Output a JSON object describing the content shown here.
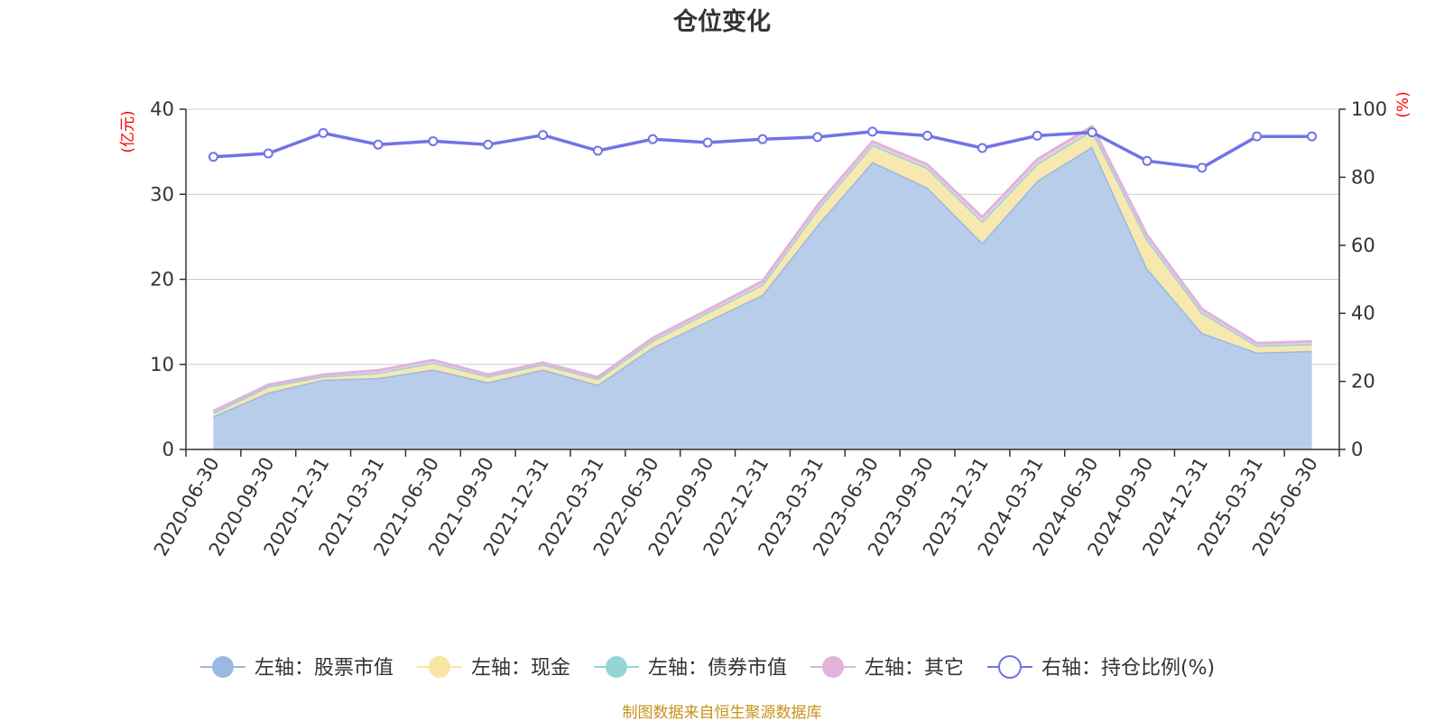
{
  "chart_data": {
    "type": "area",
    "title": "仓位变化",
    "left_axis_unit": "(亿元)",
    "right_axis_unit": "(%)",
    "left_ylim": [
      0,
      40
    ],
    "left_ticks": [
      "0",
      "10",
      "20",
      "30",
      "40"
    ],
    "right_ylim": [
      0,
      100
    ],
    "right_ticks": [
      "0",
      "20",
      "40",
      "60",
      "80",
      "100"
    ],
    "categories": [
      "2020-06-30",
      "2020-09-30",
      "2020-12-31",
      "2021-03-31",
      "2021-06-30",
      "2021-09-30",
      "2021-12-31",
      "2022-03-31",
      "2022-06-30",
      "2022-09-30",
      "2022-12-31",
      "2023-03-31",
      "2023-06-30",
      "2023-09-30",
      "2023-12-31",
      "2024-03-31",
      "2024-06-30",
      "2024-09-30",
      "2024-12-31",
      "2025-03-31",
      "2025-06-30"
    ],
    "stacked_series": [
      {
        "name": "左轴：股票市值",
        "axis": "left",
        "color": "#9bb8e2",
        "fill": "#b8cdea",
        "values": [
          3.9,
          6.7,
          8.2,
          8.4,
          9.4,
          7.9,
          9.4,
          7.6,
          12.0,
          15.1,
          18.2,
          26.4,
          33.8,
          30.8,
          24.3,
          31.6,
          35.6,
          21.3,
          13.7,
          11.4,
          11.6
        ]
      },
      {
        "name": "左轴：现金",
        "axis": "left",
        "color": "#f7e5a3",
        "fill": "#f7e8b0",
        "values": [
          0.4,
          0.7,
          0.4,
          0.6,
          0.8,
          0.7,
          0.6,
          0.7,
          0.8,
          1.0,
          1.2,
          1.8,
          2.0,
          2.3,
          2.5,
          2.0,
          1.9,
          3.4,
          2.4,
          0.8,
          0.8
        ]
      },
      {
        "name": "左轴：债券市值",
        "axis": "left",
        "color": "#96d5d5",
        "fill": "#b6e3e3",
        "values": [
          0,
          0,
          0,
          0,
          0,
          0,
          0,
          0,
          0,
          0,
          0,
          0,
          0,
          0,
          0,
          0,
          0,
          0,
          0,
          0,
          0
        ]
      },
      {
        "name": "左轴：其它",
        "axis": "left",
        "color": "#e2b2d9",
        "fill": "#edcde7",
        "values": [
          0.2,
          0.2,
          0.2,
          0.3,
          0.3,
          0.2,
          0.2,
          0.2,
          0.3,
          0.3,
          0.4,
          0.5,
          0.4,
          0.4,
          0.5,
          0.5,
          0.5,
          0.5,
          0.4,
          0.3,
          0.3
        ]
      }
    ],
    "line_series": {
      "name": "右轴：持仓比例(%)",
      "axis": "right",
      "color": "#7272e8",
      "values": [
        86.0,
        87.0,
        93.0,
        89.6,
        90.6,
        89.6,
        92.4,
        87.8,
        91.2,
        90.2,
        91.2,
        91.8,
        93.4,
        92.2,
        88.6,
        92.2,
        93.2,
        84.8,
        82.8,
        92.0,
        92.0
      ]
    },
    "grid": true,
    "legend_position": "bottom"
  },
  "legend": [
    {
      "label": "左轴：股票市值",
      "marker": "filled",
      "color": "#9bb8e2",
      "line": "#9bb8e2"
    },
    {
      "label": "左轴：现金",
      "marker": "filled",
      "color": "#f7e5a3",
      "line": "#f7e5a3"
    },
    {
      "label": "左轴：债券市值",
      "marker": "filled",
      "color": "#96d5d5",
      "line": "#96d5d5"
    },
    {
      "label": "左轴：其它",
      "marker": "filled",
      "color": "#e2b2d9",
      "line": "#e2b2d9"
    },
    {
      "label": "右轴：持仓比例(%)",
      "marker": "hollow",
      "color": "#7272e8",
      "line": "#7272e8"
    }
  ],
  "source_text": "制图数据来自恒生聚源数据库"
}
